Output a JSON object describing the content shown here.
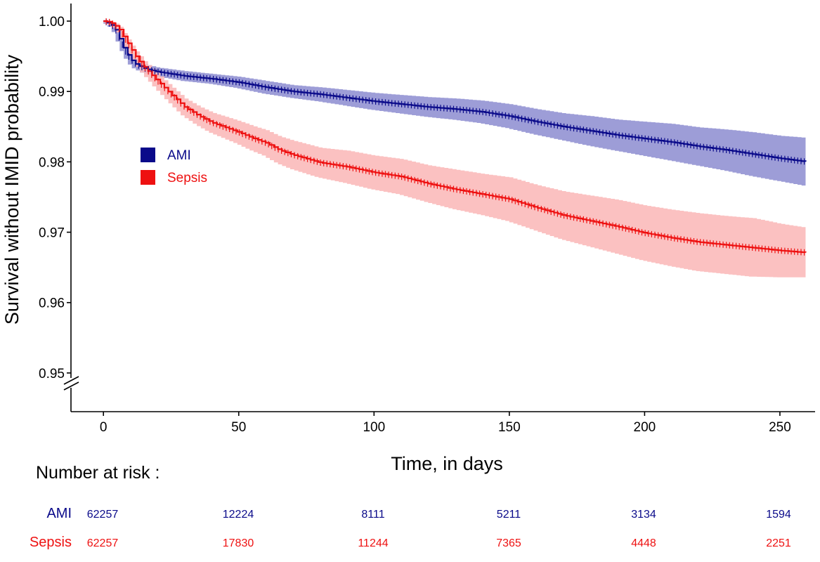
{
  "chart_data": {
    "type": "line",
    "title": "",
    "xlabel": "Time, in days",
    "ylabel": "Survival without IMID probability",
    "xlim": [
      -12,
      263
    ],
    "ylim": [
      0.9445,
      1.0025
    ],
    "x_ticks": [
      0,
      50,
      100,
      150,
      200,
      250
    ],
    "x_tick_labels": [
      "0",
      "50",
      "100",
      "150",
      "200",
      "250"
    ],
    "y_ticks": [
      1.0,
      0.99,
      0.98,
      0.97,
      0.96,
      0.95
    ],
    "y_tick_labels": [
      "1.00",
      "0.99",
      "0.98",
      "0.97",
      "0.96",
      "0.95"
    ],
    "axis_break": "y-axis break below 0.95",
    "grid": false,
    "legend_position": "top-left",
    "series": [
      {
        "name": "AMI",
        "color": "#0a0a8a",
        "band_color": "#8c8cd0",
        "x": [
          0,
          2,
          4,
          6,
          8,
          10,
          12,
          15,
          20,
          30,
          40,
          50,
          60,
          70,
          80,
          90,
          100,
          110,
          120,
          130,
          140,
          150,
          160,
          170,
          180,
          190,
          200,
          210,
          220,
          230,
          240,
          250,
          260
        ],
        "y": [
          1.0,
          0.9997,
          0.9992,
          0.9975,
          0.9958,
          0.9946,
          0.9939,
          0.9933,
          0.9928,
          0.9922,
          0.9918,
          0.9913,
          0.9906,
          0.99,
          0.9896,
          0.9891,
          0.9886,
          0.9882,
          0.9878,
          0.9875,
          0.9871,
          0.9865,
          0.9857,
          0.985,
          0.9844,
          0.9838,
          0.9833,
          0.9828,
          0.9822,
          0.9817,
          0.9811,
          0.9805,
          0.98
        ],
        "lower": [
          1.0,
          0.9995,
          0.9989,
          0.9971,
          0.9953,
          0.994,
          0.9933,
          0.9927,
          0.9922,
          0.9915,
          0.9911,
          0.9905,
          0.9897,
          0.9891,
          0.9886,
          0.988,
          0.9874,
          0.9869,
          0.9864,
          0.986,
          0.9855,
          0.9848,
          0.9839,
          0.9831,
          0.9823,
          0.9816,
          0.9809,
          0.9802,
          0.9795,
          0.9788,
          0.978,
          0.9773,
          0.9766
        ],
        "upper": [
          1.0,
          0.9999,
          0.9995,
          0.9979,
          0.9963,
          0.9952,
          0.9945,
          0.9939,
          0.9934,
          0.9929,
          0.9925,
          0.9921,
          0.9915,
          0.9909,
          0.9906,
          0.9902,
          0.9898,
          0.9895,
          0.9892,
          0.989,
          0.9887,
          0.9882,
          0.9875,
          0.9869,
          0.9865,
          0.986,
          0.9857,
          0.9854,
          0.9849,
          0.9846,
          0.9842,
          0.9837,
          0.9834
        ]
      },
      {
        "name": "Sepsis",
        "color": "#ee1111",
        "band_color": "#fbbaba",
        "x": [
          0,
          2,
          4,
          6,
          8,
          10,
          12,
          15,
          20,
          25,
          30,
          35,
          40,
          45,
          50,
          55,
          60,
          65,
          70,
          80,
          90,
          100,
          110,
          120,
          130,
          140,
          150,
          160,
          170,
          180,
          190,
          200,
          210,
          220,
          230,
          240,
          250,
          260
        ],
        "y": [
          1.0,
          0.9999,
          0.9995,
          0.9988,
          0.9975,
          0.9962,
          0.995,
          0.9935,
          0.9915,
          0.9896,
          0.9878,
          0.9866,
          0.9856,
          0.9849,
          0.9842,
          0.9834,
          0.9827,
          0.9817,
          0.981,
          0.9799,
          0.9793,
          0.9785,
          0.9779,
          0.9769,
          0.9761,
          0.9754,
          0.9747,
          0.9735,
          0.9724,
          0.9716,
          0.9708,
          0.9699,
          0.9692,
          0.9686,
          0.9682,
          0.9678,
          0.9674,
          0.9671
        ],
        "lower": [
          1.0,
          0.9997,
          0.9992,
          0.9984,
          0.997,
          0.9956,
          0.9943,
          0.9927,
          0.9905,
          0.9885,
          0.9866,
          0.9853,
          0.9842,
          0.9834,
          0.9826,
          0.9817,
          0.9809,
          0.9798,
          0.979,
          0.9778,
          0.977,
          0.9761,
          0.9754,
          0.9743,
          0.9733,
          0.9725,
          0.9716,
          0.9703,
          0.969,
          0.968,
          0.967,
          0.966,
          0.9652,
          0.9645,
          0.9641,
          0.9637,
          0.9636,
          0.9636
        ],
        "upper": [
          1.0,
          1.0,
          0.9998,
          0.9992,
          0.998,
          0.9968,
          0.9957,
          0.9943,
          0.9925,
          0.9907,
          0.989,
          0.9879,
          0.987,
          0.9864,
          0.9858,
          0.9851,
          0.9845,
          0.9836,
          0.983,
          0.982,
          0.9816,
          0.9809,
          0.9804,
          0.9795,
          0.9789,
          0.9783,
          0.9778,
          0.9767,
          0.9758,
          0.9752,
          0.9746,
          0.9738,
          0.9732,
          0.9727,
          0.9723,
          0.972,
          0.9712,
          0.9706
        ]
      }
    ]
  },
  "legend": {
    "items": [
      {
        "label": "AMI",
        "color": "#0a0a8a"
      },
      {
        "label": "Sepsis",
        "color": "#ee1111"
      }
    ]
  },
  "risk_table": {
    "title": "Number at risk :",
    "rows": [
      {
        "name": "AMI",
        "color": "#0a0a8a",
        "values": [
          "62257",
          "12224",
          "8111",
          "5211",
          "3134",
          "1594"
        ]
      },
      {
        "name": "Sepsis",
        "color": "#ee1111",
        "values": [
          "62257",
          "17830",
          "11244",
          "7365",
          "4448",
          "2251"
        ]
      }
    ]
  }
}
